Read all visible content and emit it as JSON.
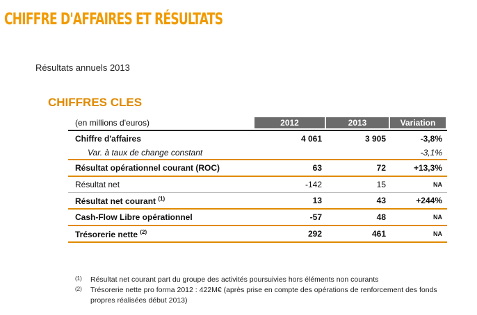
{
  "page": {
    "title": "CHIFFRE D'AFFAIRES ET RÉSULTATS",
    "subtitle": "Résultats annuels 2013",
    "section_title": "CHIFFRES CLES"
  },
  "table": {
    "unit_label": "(en millions d'euros)",
    "headers": [
      "2012",
      "2013",
      "Variation"
    ],
    "rows": [
      {
        "label": "Chiffre d'affaires",
        "y2012": "4 061",
        "y2013": "3 905",
        "variation": "-3,8%",
        "note": ""
      },
      {
        "label": "Var. à taux de change constant",
        "y2012": "",
        "y2013": "",
        "variation": "-3,1%",
        "note": ""
      },
      {
        "label": "Résultat opérationnel courant (ROC)",
        "y2012": "63",
        "y2013": "72",
        "variation": "+13,3%",
        "note": ""
      },
      {
        "label": "Résultat net",
        "y2012": "-142",
        "y2013": "15",
        "variation": "NA",
        "note": ""
      },
      {
        "label": "Résultat net courant",
        "y2012": "13",
        "y2013": "43",
        "variation": "+244%",
        "note": "(1)"
      },
      {
        "label": "Cash-Flow Libre opérationnel",
        "y2012": "-57",
        "y2013": "48",
        "variation": "NA",
        "note": ""
      },
      {
        "label": "Trésorerie nette",
        "y2012": "292",
        "y2013": "461",
        "variation": "NA",
        "note": "(2)"
      }
    ]
  },
  "footnotes": [
    {
      "mark": "(1)",
      "text": "Résultat net courant part du groupe des activités poursuivies hors éléments non courants"
    },
    {
      "mark": "(2)",
      "text": "Trésorerie nette pro forma 2012 : 422M€ (après prise en compte des opérations de renforcement des fonds propres réalisées début 2013)"
    }
  ]
}
